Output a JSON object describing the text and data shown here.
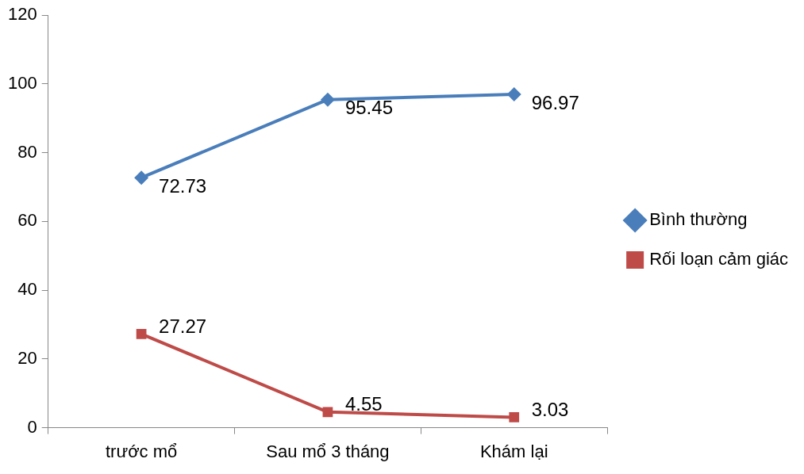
{
  "chart_data": {
    "type": "line",
    "categories": [
      "trước mổ",
      "Sau mổ 3 tháng",
      "Khám lại"
    ],
    "series": [
      {
        "name": "Bình thường",
        "color": "#4a7ebb",
        "marker": "diamond",
        "values": [
          72.73,
          95.45,
          96.97
        ]
      },
      {
        "name": "Rối loạn cảm giác",
        "color": "#be4b48",
        "marker": "square",
        "values": [
          27.27,
          4.55,
          3.03
        ]
      }
    ],
    "ylim": [
      0,
      120
    ],
    "yticks": [
      0,
      20,
      40,
      60,
      80,
      100,
      120
    ],
    "grid": false,
    "legend": "right",
    "data_labels": true,
    "line_style": "solid"
  }
}
